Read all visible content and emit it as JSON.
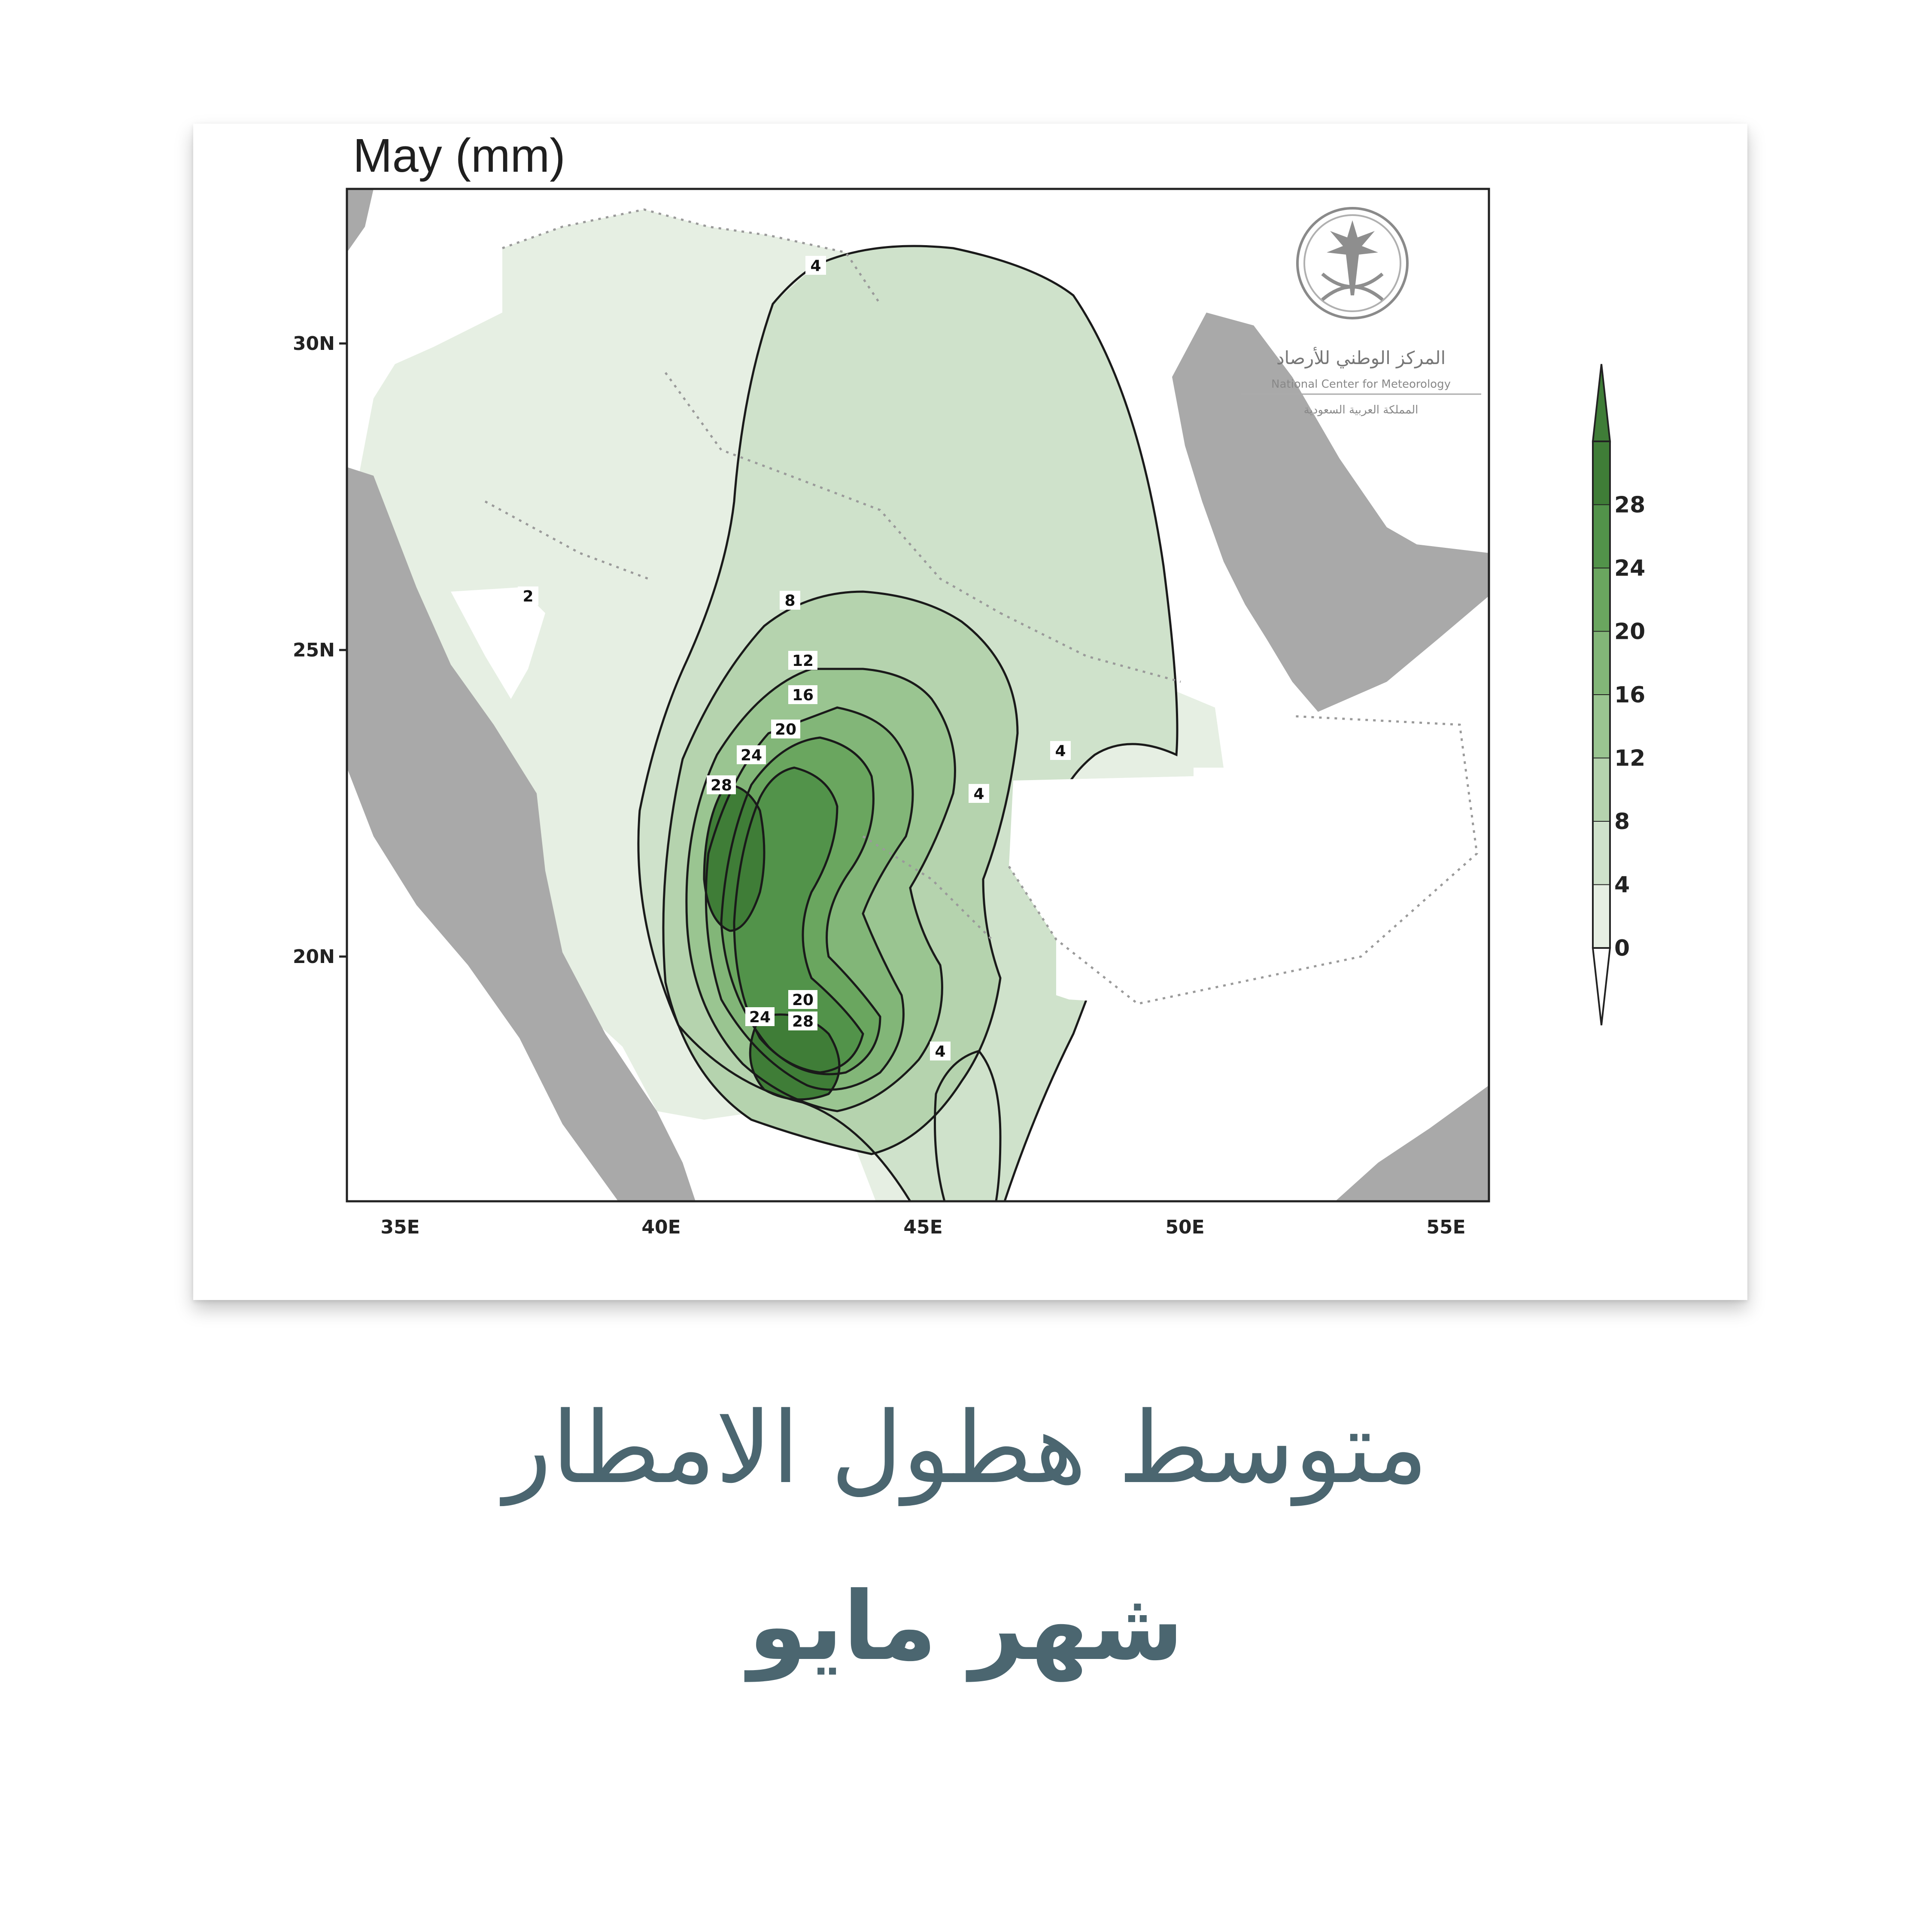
{
  "map": {
    "title": "May (mm)",
    "lat_labels": [
      "30N",
      "25N",
      "20N"
    ],
    "lon_labels": [
      "35E",
      "40E",
      "45E",
      "50E",
      "55E"
    ],
    "colorbar": {
      "levels": [
        "0",
        "4",
        "8",
        "12",
        "16",
        "20",
        "24",
        "28"
      ],
      "colors": [
        "#e6efe3",
        "#cfe2cb",
        "#b5d3ae",
        "#9ac591",
        "#82b678",
        "#6aa65f",
        "#52934a",
        "#3f7d37"
      ]
    },
    "contour_labels": [
      "4",
      "8",
      "12",
      "16",
      "20",
      "24",
      "28",
      "20",
      "24",
      "28",
      "4",
      "4",
      "4",
      "2"
    ],
    "logo": {
      "arabic_name": "المركز الوطني للأرصاد",
      "english_name": "National Center for Meteorology",
      "arabic_sub": "المملكة العربية السعودية"
    },
    "colors": {
      "sea": "#a9a9a9",
      "land_low": "#e6efe3",
      "frame": "#222222"
    }
  },
  "caption": {
    "title": "متوسط هطول الامطار",
    "month": "شهر مايو"
  }
}
